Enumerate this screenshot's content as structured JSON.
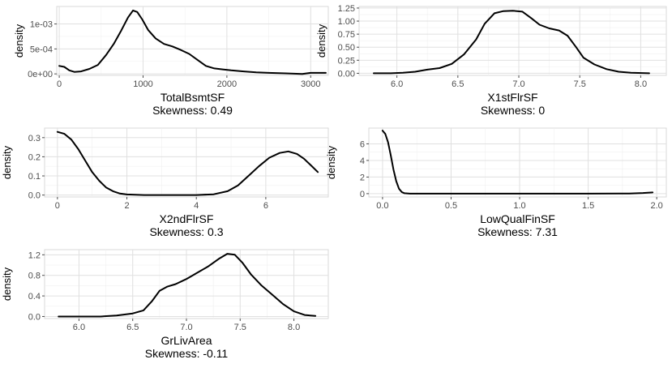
{
  "chart_data": [
    {
      "type": "line",
      "series_label": "density curve",
      "xlabel": "TotalBsmtSF",
      "subtitle": "Skewness: 0.49",
      "ylabel": "density",
      "xlim": [
        -30,
        3210
      ],
      "ylim": [
        -3e-05,
        0.00135
      ],
      "x_ticks": [
        {
          "v": 0,
          "t": "0"
        },
        {
          "v": 1000,
          "t": "1000"
        },
        {
          "v": 2000,
          "t": "2000"
        },
        {
          "v": 3000,
          "t": "3000"
        }
      ],
      "y_ticks": [
        {
          "v": 0,
          "t": "0e+00"
        },
        {
          "v": 0.0005,
          "t": "5e-04"
        },
        {
          "v": 0.001,
          "t": "1e-03"
        }
      ],
      "grid": true,
      "points": [
        [
          0,
          0.00016
        ],
        [
          60,
          0.00014
        ],
        [
          120,
          7e-05
        ],
        [
          180,
          4e-05
        ],
        [
          260,
          5e-05
        ],
        [
          360,
          0.0001
        ],
        [
          460,
          0.00018
        ],
        [
          560,
          0.00038
        ],
        [
          650,
          0.0006
        ],
        [
          740,
          0.00087
        ],
        [
          820,
          0.00113
        ],
        [
          880,
          0.00127
        ],
        [
          930,
          0.00124
        ],
        [
          990,
          0.00109
        ],
        [
          1060,
          0.00088
        ],
        [
          1150,
          0.00071
        ],
        [
          1250,
          0.0006
        ],
        [
          1350,
          0.00055
        ],
        [
          1450,
          0.00048
        ],
        [
          1550,
          0.0004
        ],
        [
          1650,
          0.00028
        ],
        [
          1750,
          0.00016
        ],
        [
          1850,
          0.00011
        ],
        [
          1950,
          9e-05
        ],
        [
          2050,
          7e-05
        ],
        [
          2200,
          5e-05
        ],
        [
          2350,
          3e-05
        ],
        [
          2500,
          2e-05
        ],
        [
          2700,
          1e-05
        ],
        [
          2900,
          0.0
        ],
        [
          3000,
          2e-05
        ],
        [
          3180,
          2e-05
        ]
      ]
    },
    {
      "type": "line",
      "series_label": "density curve",
      "xlabel": "X1stFlrSF",
      "subtitle": "Skewness: 0",
      "ylabel": "density",
      "xlim": [
        5.69,
        8.21
      ],
      "ylim": [
        -0.04,
        1.28
      ],
      "x_ticks": [
        {
          "v": 6.0,
          "t": "6.0"
        },
        {
          "v": 6.5,
          "t": "6.5"
        },
        {
          "v": 7.0,
          "t": "7.0"
        },
        {
          "v": 7.5,
          "t": "7.5"
        },
        {
          "v": 8.0,
          "t": "8.0"
        }
      ],
      "y_ticks": [
        {
          "v": 0,
          "t": "0.00"
        },
        {
          "v": 0.25,
          "t": "0.25"
        },
        {
          "v": 0.5,
          "t": "0.50"
        },
        {
          "v": 0.75,
          "t": "0.75"
        },
        {
          "v": 1.0,
          "t": "1.00"
        },
        {
          "v": 1.25,
          "t": "1.25"
        }
      ],
      "grid": true,
      "points": [
        [
          5.81,
          0.0
        ],
        [
          5.95,
          0.0
        ],
        [
          6.05,
          0.01
        ],
        [
          6.15,
          0.03
        ],
        [
          6.25,
          0.07
        ],
        [
          6.35,
          0.1
        ],
        [
          6.45,
          0.18
        ],
        [
          6.55,
          0.36
        ],
        [
          6.65,
          0.65
        ],
        [
          6.72,
          0.95
        ],
        [
          6.8,
          1.15
        ],
        [
          6.87,
          1.19
        ],
        [
          6.95,
          1.2
        ],
        [
          7.03,
          1.18
        ],
        [
          7.1,
          1.06
        ],
        [
          7.17,
          0.93
        ],
        [
          7.25,
          0.86
        ],
        [
          7.33,
          0.82
        ],
        [
          7.4,
          0.72
        ],
        [
          7.47,
          0.5
        ],
        [
          7.53,
          0.3
        ],
        [
          7.62,
          0.17
        ],
        [
          7.72,
          0.08
        ],
        [
          7.82,
          0.03
        ],
        [
          7.92,
          0.01
        ],
        [
          8.07,
          0.0
        ]
      ]
    },
    {
      "type": "line",
      "series_label": "density curve",
      "xlabel": "X2ndFlrSF",
      "subtitle": "Skewness: 0.3",
      "ylabel": "density",
      "xlim": [
        -0.37,
        7.8
      ],
      "ylim": [
        -0.01,
        0.35
      ],
      "x_ticks": [
        {
          "v": 0,
          "t": "0"
        },
        {
          "v": 2,
          "t": "2"
        },
        {
          "v": 4,
          "t": "4"
        },
        {
          "v": 6,
          "t": "6"
        }
      ],
      "y_ticks": [
        {
          "v": 0,
          "t": "0.0"
        },
        {
          "v": 0.1,
          "t": "0.1"
        },
        {
          "v": 0.2,
          "t": "0.2"
        },
        {
          "v": 0.3,
          "t": "0.3"
        }
      ],
      "grid": true,
      "points": [
        [
          0,
          0.33
        ],
        [
          0.2,
          0.32
        ],
        [
          0.4,
          0.29
        ],
        [
          0.6,
          0.24
        ],
        [
          0.8,
          0.18
        ],
        [
          1.0,
          0.12
        ],
        [
          1.2,
          0.075
        ],
        [
          1.4,
          0.04
        ],
        [
          1.6,
          0.02
        ],
        [
          1.8,
          0.008
        ],
        [
          2.0,
          0.003
        ],
        [
          2.5,
          0.0
        ],
        [
          3.0,
          0.0
        ],
        [
          3.5,
          0.0
        ],
        [
          4.0,
          0.0
        ],
        [
          4.5,
          0.004
        ],
        [
          4.9,
          0.02
        ],
        [
          5.2,
          0.05
        ],
        [
          5.5,
          0.1
        ],
        [
          5.8,
          0.15
        ],
        [
          6.1,
          0.195
        ],
        [
          6.4,
          0.22
        ],
        [
          6.65,
          0.228
        ],
        [
          6.9,
          0.215
        ],
        [
          7.1,
          0.19
        ],
        [
          7.3,
          0.155
        ],
        [
          7.5,
          0.12
        ]
      ]
    },
    {
      "type": "line",
      "series_label": "density curve",
      "xlabel": "LowQualFinSF",
      "subtitle": "Skewness: 7.31",
      "ylabel": "density",
      "xlim": [
        -0.1,
        2.07
      ],
      "ylim": [
        -0.4,
        7.9
      ],
      "x_ticks": [
        {
          "v": 0.0,
          "t": "0.0"
        },
        {
          "v": 0.5,
          "t": "0.5"
        },
        {
          "v": 1.0,
          "t": "1.0"
        },
        {
          "v": 1.5,
          "t": "1.5"
        },
        {
          "v": 2.0,
          "t": "2.0"
        }
      ],
      "y_ticks": [
        {
          "v": 0,
          "t": "0"
        },
        {
          "v": 2,
          "t": "2"
        },
        {
          "v": 4,
          "t": "4"
        },
        {
          "v": 6,
          "t": "6"
        }
      ],
      "grid": true,
      "points": [
        [
          0.0,
          7.6
        ],
        [
          0.02,
          7.2
        ],
        [
          0.04,
          6.2
        ],
        [
          0.06,
          4.6
        ],
        [
          0.08,
          2.9
        ],
        [
          0.1,
          1.5
        ],
        [
          0.12,
          0.6
        ],
        [
          0.14,
          0.2
        ],
        [
          0.16,
          0.05
        ],
        [
          0.2,
          0.0
        ],
        [
          0.5,
          0.0
        ],
        [
          1.0,
          0.0
        ],
        [
          1.5,
          0.0
        ],
        [
          1.8,
          0.02
        ],
        [
          1.9,
          0.08
        ],
        [
          1.97,
          0.15
        ]
      ]
    },
    {
      "type": "line",
      "series_label": "density curve",
      "xlabel": "GrLivArea",
      "subtitle": "Skewness: -0.11",
      "ylabel": "density",
      "xlim": [
        5.68,
        8.32
      ],
      "ylim": [
        -0.04,
        1.3
      ],
      "x_ticks": [
        {
          "v": 6.0,
          "t": "6.0"
        },
        {
          "v": 6.5,
          "t": "6.5"
        },
        {
          "v": 7.0,
          "t": "7.0"
        },
        {
          "v": 7.5,
          "t": "7.5"
        },
        {
          "v": 8.0,
          "t": "8.0"
        }
      ],
      "y_ticks": [
        {
          "v": 0,
          "t": "0.0"
        },
        {
          "v": 0.4,
          "t": "0.4"
        },
        {
          "v": 0.8,
          "t": "0.8"
        },
        {
          "v": 1.2,
          "t": "1.2"
        }
      ],
      "grid": true,
      "points": [
        [
          5.81,
          0.0
        ],
        [
          6.0,
          0.0
        ],
        [
          6.2,
          0.0
        ],
        [
          6.35,
          0.02
        ],
        [
          6.5,
          0.06
        ],
        [
          6.6,
          0.12
        ],
        [
          6.68,
          0.3
        ],
        [
          6.75,
          0.5
        ],
        [
          6.82,
          0.58
        ],
        [
          6.9,
          0.63
        ],
        [
          7.0,
          0.73
        ],
        [
          7.1,
          0.85
        ],
        [
          7.2,
          0.97
        ],
        [
          7.3,
          1.12
        ],
        [
          7.38,
          1.22
        ],
        [
          7.45,
          1.2
        ],
        [
          7.52,
          1.05
        ],
        [
          7.6,
          0.82
        ],
        [
          7.7,
          0.6
        ],
        [
          7.8,
          0.42
        ],
        [
          7.9,
          0.24
        ],
        [
          8.0,
          0.1
        ],
        [
          8.1,
          0.03
        ],
        [
          8.2,
          0.01
        ]
      ]
    }
  ]
}
